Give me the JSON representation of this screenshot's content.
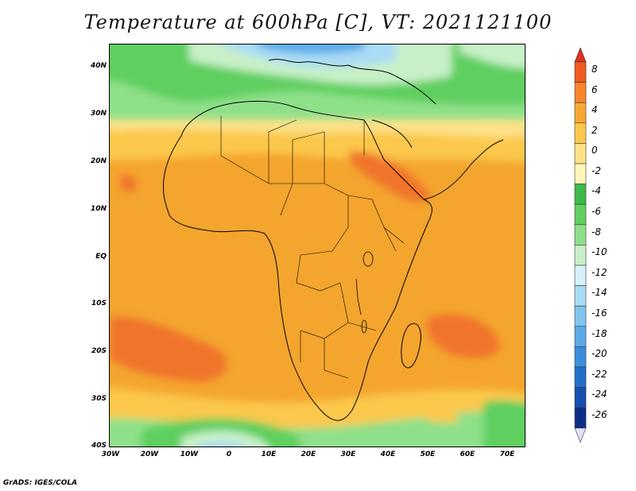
{
  "title": "Temperature at 600hPa [C], VT: 2021121100",
  "credit": "GrADS: IGES/COLA",
  "map": {
    "region": "Africa",
    "lat_range": [
      -40,
      45
    ],
    "lon_range": [
      -30,
      75
    ],
    "lat_ticks": [
      "40N",
      "30N",
      "20N",
      "10N",
      "EQ",
      "10S",
      "20S",
      "30S",
      "40S"
    ],
    "lon_ticks": [
      "30W",
      "20W",
      "10W",
      "0",
      "10E",
      "20E",
      "30E",
      "40E",
      "50E",
      "60E",
      "70E"
    ]
  },
  "colorbar": {
    "labels": [
      "8",
      "6",
      "4",
      "2",
      "0",
      "-2",
      "-4",
      "-6",
      "-8",
      "-10",
      "-12",
      "-14",
      "-16",
      "-18",
      "-20",
      "-22",
      "-24",
      "-26"
    ],
    "colors": [
      "#e0301e",
      "#f05a20",
      "#f8852a",
      "#f8a736",
      "#fbc84c",
      "#fde28a",
      "#fff6b8",
      "#3cba4a",
      "#5fcf5e",
      "#8fe08a",
      "#c8f0c8",
      "#d6f1f8",
      "#a9dcf5",
      "#82c6f0",
      "#5aabe8",
      "#3a8fde",
      "#2270cc",
      "#1650b0",
      "#0e2f88",
      "#0a1060"
    ]
  }
}
